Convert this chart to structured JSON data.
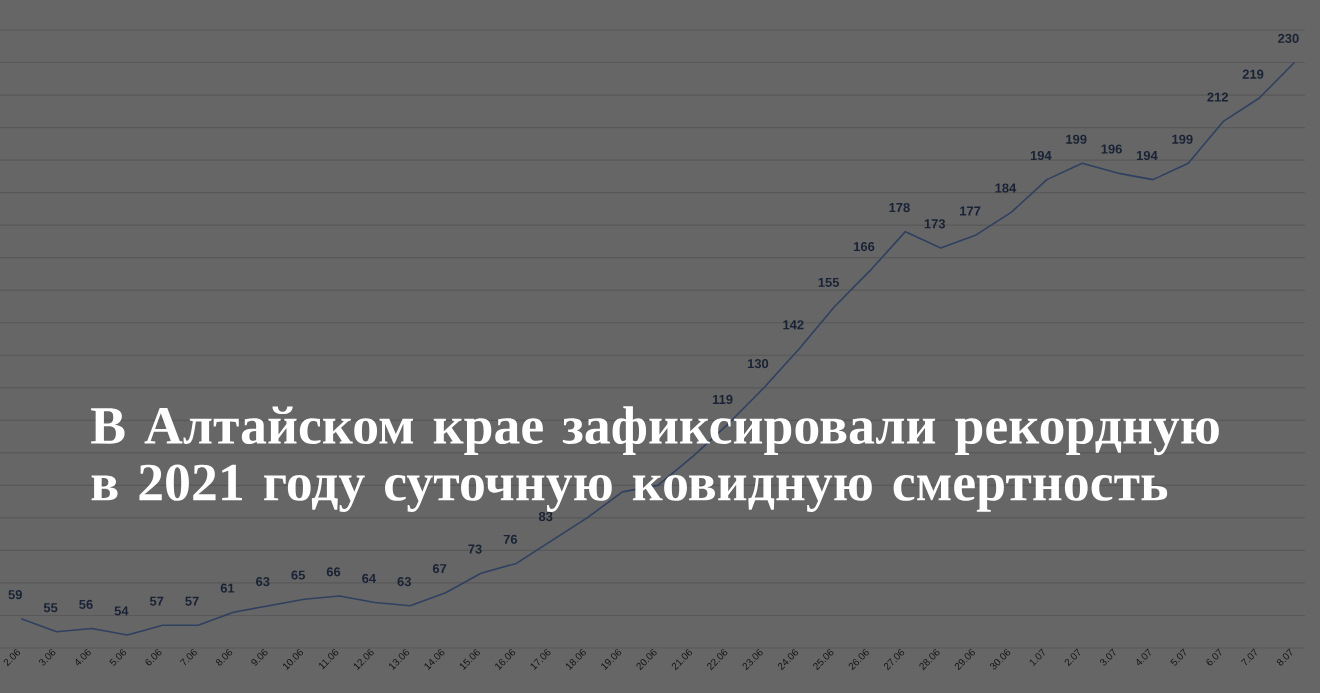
{
  "chart_data": {
    "type": "line",
    "title": "В Алтайском крае зафиксировали рекордную в 2021 году суточную ковидную смертность",
    "categories": [
      "2.06",
      "3.06",
      "4.06",
      "5.06",
      "6.06",
      "7.06",
      "8.06",
      "9.06",
      "10.06",
      "11.06",
      "12.06",
      "13.06",
      "14.06",
      "15.06",
      "16.06",
      "17.06",
      "18.06",
      "19.06",
      "20.06",
      "21.06",
      "22.06",
      "23.06",
      "24.06",
      "25.06",
      "26.06",
      "27.06",
      "28.06",
      "29.06",
      "30.06",
      "1.07",
      "2.07",
      "3.07",
      "4.07",
      "5.07",
      "6.07",
      "7.07",
      "8.07"
    ],
    "values": [
      59,
      55,
      56,
      54,
      57,
      57,
      61,
      63,
      65,
      66,
      64,
      63,
      67,
      73,
      76,
      83,
      90,
      98,
      100,
      109,
      119,
      130,
      142,
      155,
      166,
      178,
      173,
      177,
      184,
      194,
      199,
      196,
      194,
      199,
      212,
      219,
      230
    ],
    "value_labels": [
      "59",
      "55",
      "56",
      "54",
      "57",
      "57",
      "61",
      "63",
      "65",
      "66",
      "64",
      "63",
      "67",
      "73",
      "76",
      "83",
      null,
      null,
      null,
      null,
      "119",
      "130",
      "142",
      "155",
      "166",
      "178",
      "173",
      "177",
      "184",
      "194",
      "199",
      "196",
      "194",
      "199",
      "212",
      "219",
      "230"
    ],
    "color": "#2f4060",
    "ylim": [
      50,
      240
    ],
    "yticks": [
      {
        "value": 50,
        "label": null
      },
      {
        "value": 60,
        "label": null
      },
      {
        "value": 70,
        "label": null
      },
      {
        "value": 80,
        "label": null
      },
      {
        "value": 90,
        "label": null
      },
      {
        "value": 100,
        "label": null
      },
      {
        "value": 110,
        "label": null
      },
      {
        "value": 120,
        "label": null
      },
      {
        "value": 130,
        "label": null
      },
      {
        "value": 140,
        "label": null
      },
      {
        "value": 150,
        "label": null
      },
      {
        "value": 160,
        "label": null
      },
      {
        "value": 170,
        "label": null
      },
      {
        "value": 180,
        "label": null
      },
      {
        "value": 190,
        "label": null
      },
      {
        "value": 200,
        "label": null
      },
      {
        "value": 210,
        "label": null
      },
      {
        "value": 220,
        "label": null
      },
      {
        "value": 230,
        "label": null
      },
      {
        "value": 240,
        "label": null
      }
    ],
    "grid": "y",
    "tick_labels": "x",
    "marker": "none"
  }
}
